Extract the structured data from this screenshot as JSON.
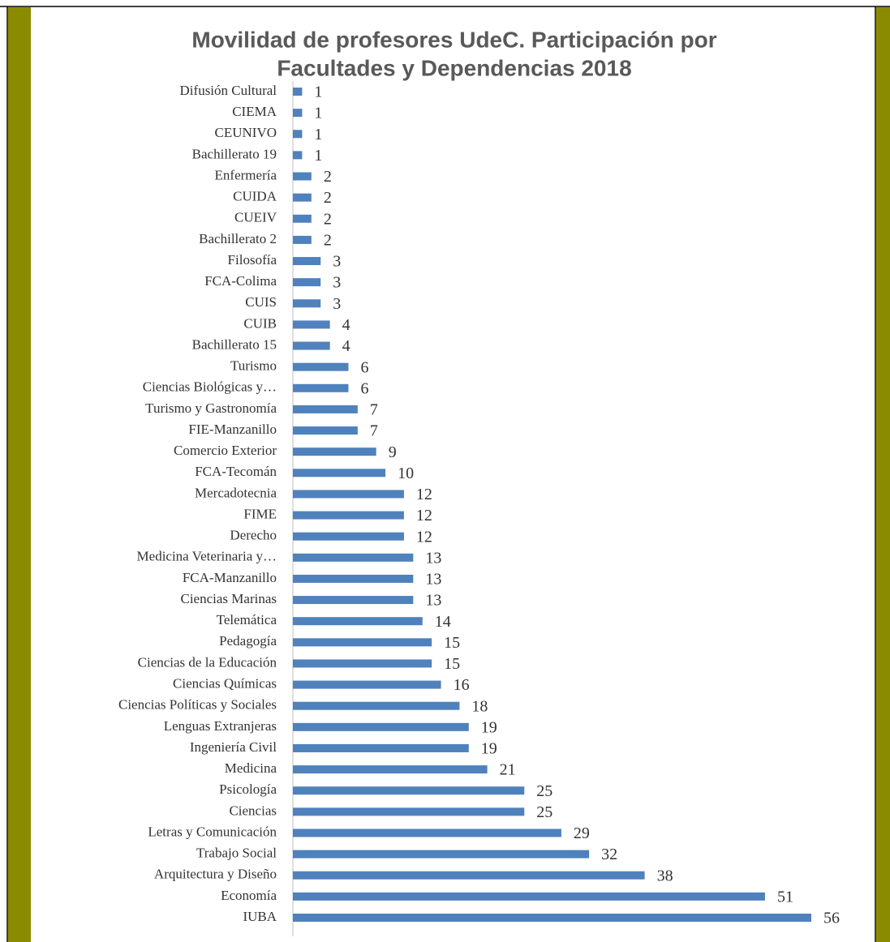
{
  "chart_data": {
    "type": "bar",
    "orientation": "horizontal",
    "title": [
      "Movilidad de profesores UdeC. Participación por",
      "Facultades y Dependencias 2018"
    ],
    "color": "#4f81bd",
    "categories": [
      "Difusión Cultural",
      "CIEMA",
      "CEUNIVO",
      "Bachillerato 19",
      "Enfermería",
      "CUIDA",
      "CUEIV",
      "Bachillerato 2",
      "Filosofía",
      "FCA-Colima",
      "CUIS",
      "CUIB",
      "Bachillerato 15",
      "Turismo",
      "Ciencias Biológicas y…",
      "Turismo y Gastronomía",
      "FIE-Manzanillo",
      "Comercio Exterior",
      "FCA-Tecomán",
      "Mercadotecnia",
      "FIME",
      "Derecho",
      "Medicina Veterinaria y…",
      "FCA-Manzanillo",
      "Ciencias Marinas",
      "Telemática",
      "Pedagogía",
      "Ciencias de la Educación",
      "Ciencias Químicas",
      "Ciencias Políticas y Sociales",
      "Lenguas Extranjeras",
      "Ingeniería Civil",
      "Medicina",
      "Psicología",
      "Ciencias",
      "Letras y Comunicación",
      "Trabajo Social",
      "Arquitectura y Diseño",
      "Economía",
      "IUBA"
    ],
    "values": [
      1,
      1,
      1,
      1,
      2,
      2,
      2,
      2,
      3,
      3,
      3,
      4,
      4,
      6,
      6,
      7,
      7,
      9,
      10,
      12,
      12,
      12,
      13,
      13,
      13,
      14,
      15,
      15,
      16,
      18,
      19,
      19,
      21,
      25,
      25,
      29,
      32,
      38,
      51,
      56
    ]
  }
}
